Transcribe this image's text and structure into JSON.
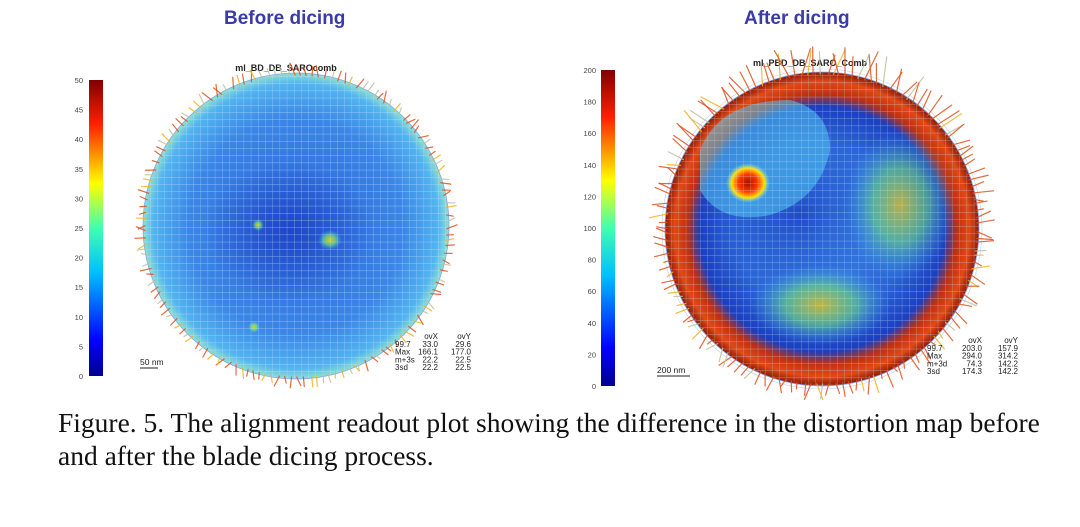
{
  "figure": {
    "caption": "Figure. 5. The alignment readout plot showing the difference in the distortion map before and after the blade dicing process.",
    "panels": [
      {
        "title": "Before dicing",
        "plot_name": "ml_BD_DB_SAROcomb",
        "colorbar_ticks": [
          "0",
          "5",
          "10",
          "15",
          "20",
          "25",
          "30",
          "35",
          "40",
          "45",
          "50"
        ],
        "scale_label": "50 nm",
        "stats": {
          "headers": [
            "ovX",
            "ovY"
          ],
          "rows": [
            {
              "label": "99.7",
              "x": "33.0",
              "y": "29.6"
            },
            {
              "label": "Max",
              "x": "166.1",
              "y": "177.0"
            },
            {
              "label": "m+3s",
              "x": "22.2",
              "y": "22.5"
            },
            {
              "label": "3sd",
              "x": "22.2",
              "y": "22.5"
            }
          ]
        },
        "hotspot_level": 0.12
      },
      {
        "title": "After dicing",
        "plot_name": "ml_PBD_DB_SARO_Comb",
        "colorbar_ticks": [
          "0",
          "20",
          "40",
          "60",
          "80",
          "100",
          "120",
          "140",
          "160",
          "180",
          "200"
        ],
        "scale_label": "200 nm",
        "stats": {
          "headers": [
            "ovX",
            "ovY"
          ],
          "rows": [
            {
              "label": "99.7",
              "x": "203.0",
              "y": "157.9"
            },
            {
              "label": "Max",
              "x": "294.0",
              "y": "314.2"
            },
            {
              "label": "m+3d",
              "x": "74.3",
              "y": "142.2"
            },
            {
              "label": "3sd",
              "x": "174.3",
              "y": "142.2"
            }
          ]
        },
        "hotspot_level": 0.85
      }
    ],
    "colors": {
      "title": "#3a3aa8",
      "wafer_base": "#2b6fd6",
      "grid": "#d7e6ff",
      "colormap": [
        "#00008f",
        "#0000ff",
        "#0080ff",
        "#00ffff",
        "#80ff80",
        "#ffff00",
        "#ff8000",
        "#ff0000",
        "#800000"
      ]
    }
  }
}
